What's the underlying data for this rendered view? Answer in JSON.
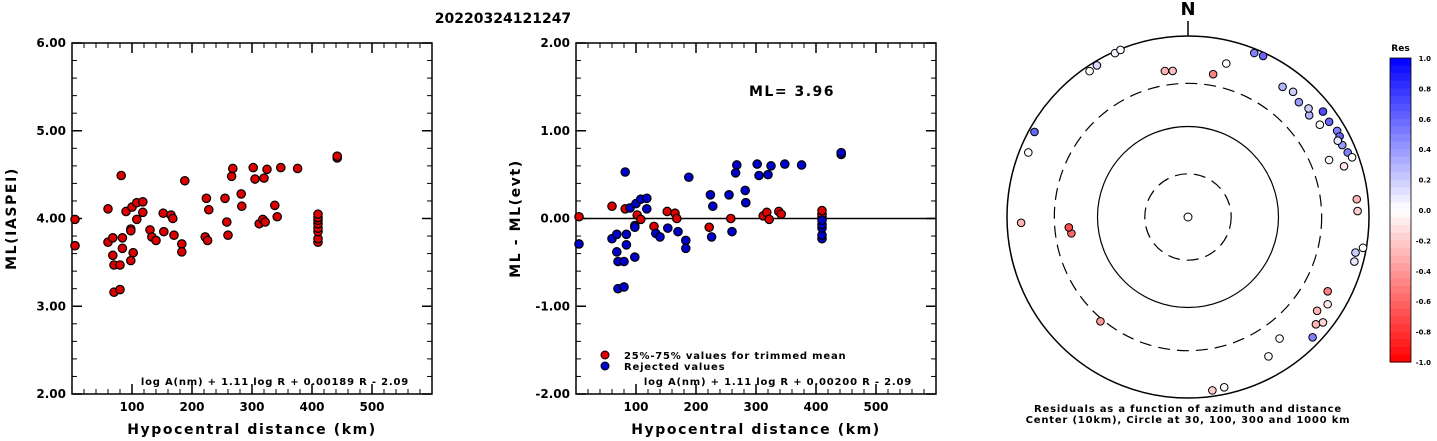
{
  "title": "20220324121247",
  "chart_data": [
    {
      "type": "scatter",
      "xlabel": "Hypocentral distance (km)",
      "ylabel": "ML(IASPEI)",
      "xlim": [
        0,
        600
      ],
      "ylim": [
        2.0,
        6.0
      ],
      "xticks": [
        "100",
        "200",
        "300",
        "400",
        "500"
      ],
      "yticks": [
        "2.00",
        "3.00",
        "4.00",
        "5.00",
        "6.00"
      ],
      "formula": "log A(nm) + 1.11 log R + 0.00189 R - 2.09",
      "series": [
        {
          "color": "#dd0000",
          "points": [
            [
              5,
              3.99
            ],
            [
              5,
              3.69
            ],
            [
              60,
              3.73
            ],
            [
              60,
              4.11
            ],
            [
              68,
              3.78
            ],
            [
              68,
              3.58
            ],
            [
              70,
              3.47
            ],
            [
              70,
              3.16
            ],
            [
              80,
              3.19
            ],
            [
              80,
              3.47
            ],
            [
              82,
              4.49
            ],
            [
              84,
              3.78
            ],
            [
              84,
              3.66
            ],
            [
              90,
              4.08
            ],
            [
              98,
              3.88
            ],
            [
              98,
              3.86
            ],
            [
              98,
              3.52
            ],
            [
              100,
              4.13
            ],
            [
              102,
              3.61
            ],
            [
              108,
              3.99
            ],
            [
              108,
              4.18
            ],
            [
              118,
              4.19
            ],
            [
              118,
              4.07
            ],
            [
              130,
              3.87
            ],
            [
              133,
              3.79
            ],
            [
              140,
              3.75
            ],
            [
              152,
              4.06
            ],
            [
              153,
              3.85
            ],
            [
              165,
              4.04
            ],
            [
              168,
              4.0
            ],
            [
              170,
              3.81
            ],
            [
              183,
              3.71
            ],
            [
              183,
              3.62
            ],
            [
              188,
              4.43
            ],
            [
              222,
              3.79
            ],
            [
              224,
              4.23
            ],
            [
              226,
              3.75
            ],
            [
              228,
              4.1
            ],
            [
              255,
              4.23
            ],
            [
              258,
              3.96
            ],
            [
              260,
              3.81
            ],
            [
              266,
              4.48
            ],
            [
              268,
              4.57
            ],
            [
              282,
              4.28
            ],
            [
              283,
              4.14
            ],
            [
              302,
              4.58
            ],
            [
              305,
              4.45
            ],
            [
              312,
              3.94
            ],
            [
              318,
              3.99
            ],
            [
              320,
              4.46
            ],
            [
              322,
              3.96
            ],
            [
              325,
              4.56
            ],
            [
              338,
              4.15
            ],
            [
              342,
              4.02
            ],
            [
              348,
              4.58
            ],
            [
              376,
              4.57
            ],
            [
              410,
              3.73
            ],
            [
              410,
              3.77
            ],
            [
              410,
              3.85
            ],
            [
              410,
              3.89
            ],
            [
              410,
              3.94
            ],
            [
              410,
              3.98
            ],
            [
              410,
              4.01
            ],
            [
              410,
              4.05
            ],
            [
              442,
              4.69
            ],
            [
              442,
              4.71
            ]
          ]
        }
      ]
    },
    {
      "type": "scatter",
      "xlabel": "Hypocentral distance (km)",
      "ylabel": "ML - ML(evt)",
      "xlim": [
        0,
        600
      ],
      "ylim": [
        -2.0,
        2.0
      ],
      "xticks": [
        "100",
        "200",
        "300",
        "400",
        "500"
      ],
      "yticks": [
        "-2.00",
        "-1.00",
        "0.00",
        "1.00",
        "2.00"
      ],
      "annotation": "ML= 3.96",
      "formula": "log A(nm) + 1.11 log R + 0.00200 R - 2.09",
      "legend": [
        {
          "label": "25%-75% values for trimmed mean",
          "color": "#dd0000"
        },
        {
          "label": "Rejected values",
          "color": "#0000cc"
        }
      ],
      "series": [
        {
          "name": "25%-75% values for trimmed mean",
          "color": "#dd0000",
          "points": [
            [
              5,
              0.02
            ],
            [
              60,
              0.14
            ],
            [
              82,
              0.11
            ],
            [
              102,
              0.04
            ],
            [
              108,
              -0.01
            ],
            [
              130,
              -0.09
            ],
            [
              152,
              0.08
            ],
            [
              165,
              0.06
            ],
            [
              168,
              0.0
            ],
            [
              222,
              -0.1
            ],
            [
              258,
              0.0
            ],
            [
              312,
              0.03
            ],
            [
              318,
              0.07
            ],
            [
              322,
              -0.01
            ],
            [
              338,
              0.08
            ],
            [
              342,
              0.05
            ],
            [
              410,
              0.02
            ],
            [
              410,
              0.05
            ],
            [
              410,
              0.09
            ]
          ]
        },
        {
          "name": "Rejected values",
          "color": "#0000cc",
          "points": [
            [
              5,
              -0.29
            ],
            [
              60,
              -0.23
            ],
            [
              68,
              -0.18
            ],
            [
              68,
              -0.38
            ],
            [
              70,
              -0.49
            ],
            [
              70,
              -0.8
            ],
            [
              80,
              -0.78
            ],
            [
              80,
              -0.49
            ],
            [
              82,
              0.53
            ],
            [
              84,
              -0.18
            ],
            [
              84,
              -0.3
            ],
            [
              90,
              0.12
            ],
            [
              98,
              -0.08
            ],
            [
              98,
              -0.1
            ],
            [
              98,
              -0.44
            ],
            [
              100,
              0.17
            ],
            [
              108,
              0.22
            ],
            [
              118,
              0.23
            ],
            [
              118,
              0.11
            ],
            [
              133,
              -0.17
            ],
            [
              140,
              -0.21
            ],
            [
              153,
              -0.11
            ],
            [
              170,
              -0.15
            ],
            [
              183,
              -0.25
            ],
            [
              183,
              -0.34
            ],
            [
              188,
              0.47
            ],
            [
              224,
              0.27
            ],
            [
              226,
              -0.21
            ],
            [
              228,
              0.14
            ],
            [
              255,
              0.27
            ],
            [
              260,
              -0.15
            ],
            [
              266,
              0.52
            ],
            [
              268,
              0.61
            ],
            [
              282,
              0.32
            ],
            [
              283,
              0.18
            ],
            [
              302,
              0.62
            ],
            [
              305,
              0.49
            ],
            [
              320,
              0.5
            ],
            [
              325,
              0.6
            ],
            [
              348,
              0.62
            ],
            [
              376,
              0.61
            ],
            [
              410,
              -0.23
            ],
            [
              410,
              -0.19
            ],
            [
              410,
              -0.11
            ],
            [
              410,
              -0.07
            ],
            [
              410,
              -0.02
            ],
            [
              442,
              0.73
            ],
            [
              442,
              0.75
            ]
          ]
        }
      ]
    },
    {
      "type": "scatter",
      "north_label": "N",
      "caption1": "Residuals as a function of azimuth and distance",
      "caption2": "Center (10km), Circle at 30, 100, 300 and 1000 km",
      "colorbar_title": "Res",
      "colorbar_ticks": [
        "1.0",
        "0.8",
        "0.6",
        "0.4",
        "0.2",
        "0.0",
        "-0.2",
        "-0.4",
        "-0.6",
        "-0.8",
        "-1.0"
      ],
      "points": [
        {
          "az": 336,
          "dist": 960,
          "res": 0.05
        },
        {
          "az": 338,
          "dist": 980,
          "res": 0.0
        },
        {
          "az": 329,
          "dist": 900,
          "res": 0.15
        },
        {
          "az": 326,
          "dist": 880,
          "res": 0.0
        },
        {
          "az": 299,
          "dist": 870,
          "res": 0.6
        },
        {
          "az": 292,
          "dist": 800,
          "res": 0.0
        },
        {
          "az": 351,
          "dist": 430,
          "res": -0.3
        },
        {
          "az": 354,
          "dist": 420,
          "res": -0.25
        },
        {
          "az": 14,
          "dist": 560,
          "res": 0.0
        },
        {
          "az": 22,
          "dist": 900,
          "res": 0.5
        },
        {
          "az": 25,
          "dist": 920,
          "res": 0.6
        },
        {
          "az": 10,
          "dist": 400,
          "res": -0.5
        },
        {
          "az": 36,
          "dist": 600,
          "res": 0.3
        },
        {
          "az": 40,
          "dist": 640,
          "res": 0.2
        },
        {
          "az": 44,
          "dist": 580,
          "res": 0.4
        },
        {
          "az": 50,
          "dist": 560,
          "res": 0.3
        },
        {
          "az": 48,
          "dist": 620,
          "res": 0.2
        },
        {
          "az": 55,
          "dist": 600,
          "res": 0.0
        },
        {
          "az": 52,
          "dist": 780,
          "res": 0.7
        },
        {
          "az": 56,
          "dist": 760,
          "res": 0.6
        },
        {
          "az": 60,
          "dist": 800,
          "res": 0.5
        },
        {
          "az": 62,
          "dist": 790,
          "res": 0.6
        },
        {
          "az": 65,
          "dist": 760,
          "res": 0.4
        },
        {
          "az": 68,
          "dist": 800,
          "res": 0.5
        },
        {
          "az": 70,
          "dist": 850,
          "res": 0.0
        },
        {
          "az": 63,
          "dist": 720,
          "res": 0.1
        },
        {
          "az": 68,
          "dist": 480,
          "res": 0.0
        },
        {
          "az": 72,
          "dist": 650,
          "res": -0.1
        },
        {
          "az": 84,
          "dist": 750,
          "res": -0.3
        },
        {
          "az": 88,
          "dist": 750,
          "res": -0.2
        },
        {
          "az": 102,
          "dist": 780,
          "res": 0.2
        },
        {
          "az": 105,
          "dist": 800,
          "res": 0.1
        },
        {
          "az": 100,
          "dist": 920,
          "res": 0.0
        },
        {
          "az": 118,
          "dist": 560,
          "res": -0.5
        },
        {
          "az": 122,
          "dist": 660,
          "res": -0.1
        },
        {
          "az": 126,
          "dist": 580,
          "res": -0.3
        },
        {
          "az": 130,
          "dist": 700,
          "res": -0.3
        },
        {
          "az": 128,
          "dist": 780,
          "res": -0.15
        },
        {
          "az": 134,
          "dist": 820,
          "res": 0.5
        },
        {
          "az": 143,
          "dist": 480,
          "res": 0.0
        },
        {
          "az": 150,
          "dist": 600,
          "res": 0.0
        },
        {
          "az": 168,
          "dist": 840,
          "res": 0.0
        },
        {
          "az": 172,
          "dist": 860,
          "res": -0.2
        },
        {
          "az": 220,
          "dist": 320,
          "res": -0.4
        },
        {
          "az": 262,
          "dist": 200,
          "res": -0.6
        },
        {
          "az": 265,
          "dist": 210,
          "res": -0.7
        },
        {
          "az": 268,
          "dist": 700,
          "res": -0.3
        }
      ]
    }
  ]
}
